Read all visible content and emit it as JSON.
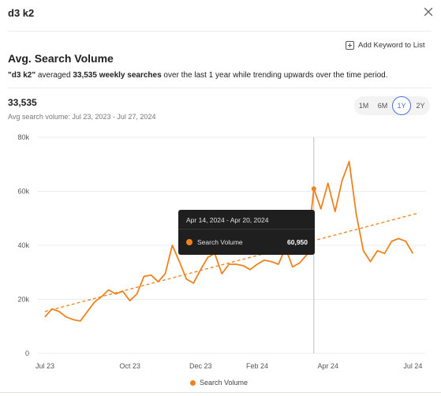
{
  "panel": {
    "title": "d3 k2",
    "close_icon": "close-icon"
  },
  "actions": {
    "add_keyword_label": "Add Keyword to List",
    "add_icon": "plus-square-icon"
  },
  "section": {
    "title": "Avg. Search Volume",
    "summary": {
      "keyword": "\"d3 k2\"",
      "averaged": " averaged ",
      "value_text": "33,535 weekly searches",
      "tail": " over the last 1 year while trending upwards over the time period."
    }
  },
  "stats": {
    "average": "33,535",
    "range_label": "Avg search volume: Jul 23, 2023 - Jul 27, 2024"
  },
  "range_options": [
    "1M",
    "6M",
    "1Y",
    "2Y"
  ],
  "range_selected": "1Y",
  "tooltip": {
    "date_range": "Apr 14, 2024 - Apr 20, 2024",
    "series_label": "Search Volume",
    "value": "60,950"
  },
  "colors": {
    "series": "#f0821e",
    "accent": "#4a6ee0"
  },
  "chart_data": {
    "type": "line",
    "y_ticks": [
      "0",
      "20k",
      "40k",
      "60k",
      "80k"
    ],
    "x_ticks": [
      "Jul 23",
      "Oct 23",
      "Dec 23",
      "Feb 24",
      "Apr 24",
      "Jul 24"
    ],
    "ylim": [
      0,
      80000
    ],
    "grid": "horizontal",
    "legend": "bottom",
    "series": [
      {
        "name": "Search Volume",
        "x": [
          "2023-07-23",
          "2023-07-30",
          "2023-08-06",
          "2023-08-13",
          "2023-08-20",
          "2023-08-27",
          "2023-09-03",
          "2023-09-10",
          "2023-09-17",
          "2023-09-24",
          "2023-10-01",
          "2023-10-08",
          "2023-10-15",
          "2023-10-22",
          "2023-10-29",
          "2023-11-05",
          "2023-11-12",
          "2023-11-19",
          "2023-11-26",
          "2023-12-03",
          "2023-12-10",
          "2023-12-17",
          "2023-12-24",
          "2023-12-31",
          "2024-01-07",
          "2024-01-14",
          "2024-01-21",
          "2024-01-28",
          "2024-02-04",
          "2024-02-11",
          "2024-02-18",
          "2024-02-25",
          "2024-03-03",
          "2024-03-10",
          "2024-03-17",
          "2024-03-24",
          "2024-03-31",
          "2024-04-07",
          "2024-04-14",
          "2024-04-21",
          "2024-04-28",
          "2024-05-05",
          "2024-05-12",
          "2024-05-19",
          "2024-05-26",
          "2024-06-02",
          "2024-06-09",
          "2024-06-16",
          "2024-06-23",
          "2024-06-30",
          "2024-07-07",
          "2024-07-14",
          "2024-07-21"
        ],
        "values": [
          13500,
          16500,
          15500,
          13500,
          12500,
          12000,
          15500,
          19000,
          21000,
          23500,
          22000,
          23000,
          19500,
          22000,
          28500,
          29000,
          26500,
          29500,
          40000,
          34000,
          27500,
          26000,
          31000,
          35500,
          37000,
          29500,
          33000,
          33000,
          32500,
          31000,
          33000,
          34500,
          34000,
          33000,
          39000,
          32000,
          33500,
          36500,
          60950,
          53500,
          63000,
          52500,
          64000,
          71000,
          51500,
          38000,
          34000,
          38000,
          37000,
          41500,
          42500,
          41500,
          37000
        ]
      },
      {
        "name": "Trend",
        "x": [
          "2023-07-23",
          "2024-07-27"
        ],
        "values": [
          15500,
          52000
        ]
      }
    ]
  },
  "legend": {
    "label": "Search Volume"
  }
}
